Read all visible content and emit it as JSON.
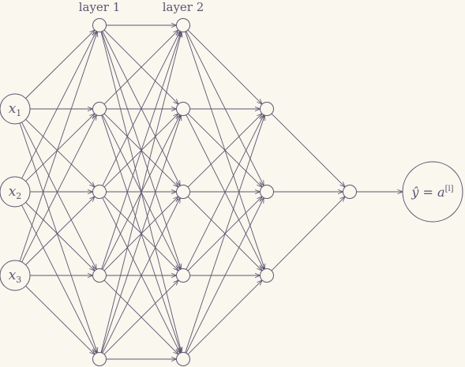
{
  "layer_labels": [
    "layer 1",
    "layer 2"
  ],
  "inputs": [
    {
      "base": "x",
      "sub": "1"
    },
    {
      "base": "x",
      "sub": "2"
    },
    {
      "base": "x",
      "sub": "3"
    }
  ],
  "output": {
    "lhs": "ŷ",
    "eq": " = ",
    "base": "a",
    "sup": "[l]"
  },
  "colors": {
    "background": "#f9f7ee",
    "stroke": "#5e5470"
  },
  "network": {
    "layer_sizes": [
      3,
      5,
      5,
      3,
      1,
      1
    ],
    "description": "input(3) -> layer1(5) -> layer2(5) -> layer3(3) -> layer4(1) -> output"
  }
}
